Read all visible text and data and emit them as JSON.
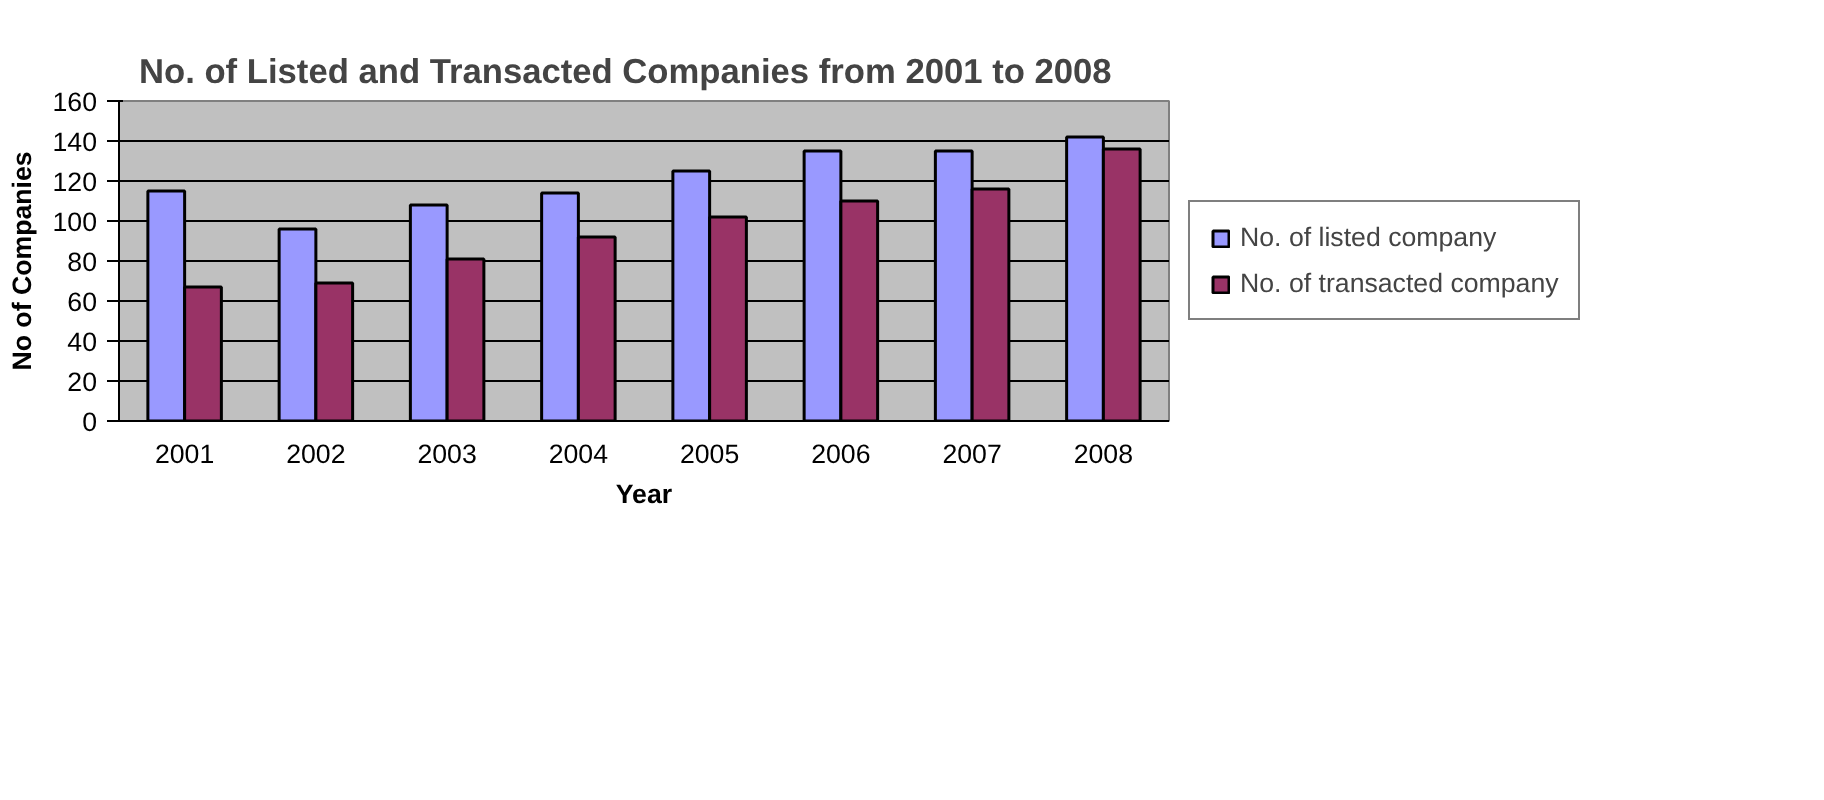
{
  "chart_data": {
    "type": "bar",
    "title": "No. of Listed and Transacted Companies from 2001 to 2008",
    "xlabel": "Year",
    "ylabel": "No of Companies",
    "categories": [
      "2001",
      "2002",
      "2003",
      "2004",
      "2005",
      "2006",
      "2007",
      "2008"
    ],
    "series": [
      {
        "name": "No. of listed company",
        "color": "#9999ff",
        "values": [
          115,
          96,
          108,
          114,
          125,
          135,
          135,
          142
        ]
      },
      {
        "name": "No. of transacted company",
        "color": "#993366",
        "values": [
          67,
          69,
          81,
          92,
          102,
          110,
          116,
          136
        ]
      }
    ],
    "ylim": [
      0,
      160
    ],
    "yticks": [
      0,
      20,
      40,
      60,
      80,
      100,
      120,
      140,
      160
    ],
    "grid": "y",
    "legend": "right"
  }
}
